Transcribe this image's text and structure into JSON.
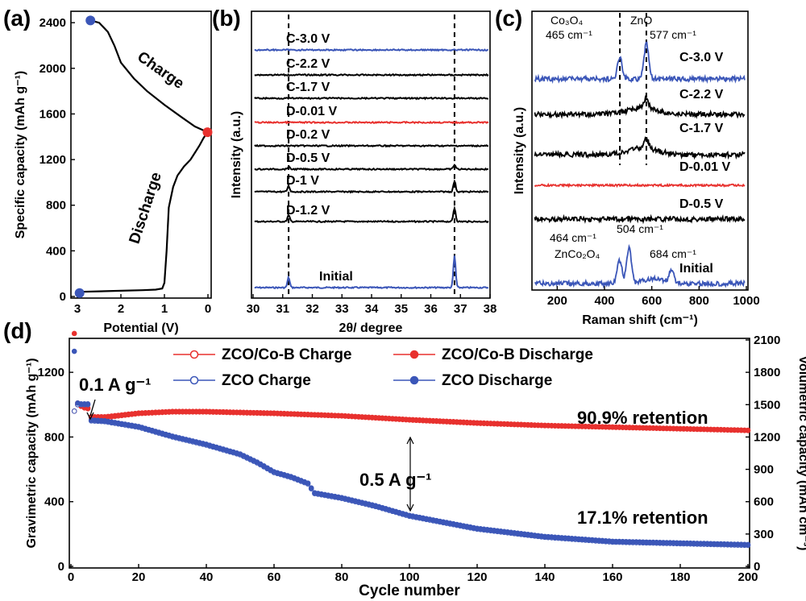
{
  "chart_data": [
    {
      "panel": "(a)",
      "type": "line",
      "xlabel": "Potential (V)",
      "ylabel": "Specific capacity (mAh g⁻¹)",
      "xlim": [
        3,
        0
      ],
      "ylim": [
        0,
        2500
      ],
      "xticks": [
        3,
        2,
        1,
        0
      ],
      "yticks": [
        0,
        400,
        800,
        1200,
        1600,
        2000,
        2400
      ],
      "series": [
        {
          "name": "Discharge",
          "color": "#000000",
          "x": [
            3.0,
            2.5,
            2.0,
            1.5,
            1.2,
            1.05,
            1.0,
            0.95,
            0.9,
            0.8,
            0.7,
            0.55,
            0.4,
            0.3,
            0.2,
            0.1,
            0.01
          ],
          "y": [
            40,
            45,
            50,
            55,
            60,
            70,
            120,
            400,
            780,
            960,
            1060,
            1140,
            1200,
            1260,
            1320,
            1390,
            1440
          ]
        },
        {
          "name": "Charge",
          "color": "#000000",
          "x": [
            0.01,
            0.3,
            0.6,
            1.0,
            1.4,
            1.7,
            2.0,
            2.15,
            2.3,
            2.5,
            2.7
          ],
          "y": [
            1440,
            1490,
            1570,
            1680,
            1800,
            1910,
            2050,
            2200,
            2320,
            2400,
            2420
          ]
        }
      ],
      "markers": [
        {
          "x": 2.95,
          "y": 30,
          "color": "#3b56b8"
        },
        {
          "x": 0.01,
          "y": 1440,
          "color": "#e8312e"
        },
        {
          "x": 2.7,
          "y": 2420,
          "color": "#3b56b8"
        }
      ],
      "annotations": [
        "Charge",
        "Discharge"
      ]
    },
    {
      "panel": "(b)",
      "type": "line",
      "xlabel": "2θ/ degree",
      "ylabel": "Intensity (a.u.)",
      "xlim": [
        30,
        38
      ],
      "xticks": [
        30,
        31,
        32,
        33,
        34,
        35,
        36,
        37,
        38
      ],
      "dashed_lines_x": [
        31.2,
        36.8
      ],
      "series": [
        {
          "name": "Initial",
          "color": "#3b56b8",
          "peaks": [
            {
              "x": 31.2,
              "h": 0.9
            },
            {
              "x": 36.8,
              "h": 2.8
            }
          ]
        },
        {
          "name": "D-1.2 V",
          "color": "#000000",
          "peaks": [
            {
              "x": 31.2,
              "h": 0.55
            },
            {
              "x": 36.8,
              "h": 1.2
            }
          ]
        },
        {
          "name": "D-1 V",
          "color": "#000000",
          "peaks": [
            {
              "x": 31.2,
              "h": 0.5
            },
            {
              "x": 36.8,
              "h": 0.95
            }
          ]
        },
        {
          "name": "D-0.5 V",
          "color": "#000000",
          "peaks": [
            {
              "x": 31.2,
              "h": 0.2
            },
            {
              "x": 36.8,
              "h": 0.4
            }
          ]
        },
        {
          "name": "D-0.2 V",
          "color": "#000000",
          "peaks": []
        },
        {
          "name": "D-0.01 V",
          "color": "#e8312e",
          "peaks": []
        },
        {
          "name": "C-1.7 V",
          "color": "#000000",
          "peaks": []
        },
        {
          "name": "C-2.2 V",
          "color": "#000000",
          "peaks": []
        },
        {
          "name": "C-3.0 V",
          "color": "#3b56b8",
          "peaks": []
        }
      ]
    },
    {
      "panel": "(c)",
      "type": "line",
      "xlabel": "Raman shift (cm⁻¹)",
      "ylabel": "Intensity (a.u.)",
      "xlim": [
        100,
        1000
      ],
      "xticks": [
        200,
        400,
        600,
        800,
        1000
      ],
      "dashed_lines_x": [
        465,
        577
      ],
      "series": [
        {
          "name": "Initial",
          "color": "#3b56b8",
          "peaks": [
            {
              "x": 464,
              "h": 1.3
            },
            {
              "x": 504,
              "h": 2.0
            },
            {
              "x": 684,
              "h": 0.75
            }
          ]
        },
        {
          "name": "D-0.5 V",
          "color": "#000000",
          "peaks": []
        },
        {
          "name": "D-0.01 V",
          "color": "#e8312e",
          "peaks": []
        },
        {
          "name": "C-1.7 V",
          "color": "#000000",
          "peaks": [
            {
              "x": 577,
              "h": 0.55
            }
          ]
        },
        {
          "name": "C-2.2 V",
          "color": "#000000",
          "peaks": [
            {
              "x": 577,
              "h": 0.5
            }
          ]
        },
        {
          "name": "C-3.0 V",
          "color": "#3b56b8",
          "peaks": [
            {
              "x": 465,
              "h": 1.2
            },
            {
              "x": 577,
              "h": 2.0
            }
          ]
        }
      ],
      "annotations": {
        "co3o4": "Co₃O₄",
        "co3o4_shift": "465 cm⁻¹",
        "zno": "ZnO",
        "zno_shift": "577 cm⁻¹",
        "znco2o4": "ZnCo₂O₄",
        "peak_464": "464 cm⁻¹",
        "peak_504": "504 cm⁻¹",
        "peak_684": "684 cm⁻¹"
      }
    },
    {
      "panel": "(d)",
      "type": "scatter",
      "xlabel": "Cycle number",
      "ylabel": "Gravimetric capacity (mAh g⁻¹)",
      "ylabel_right": "Volumetric capacity (mAh cm⁻³)",
      "xlim": [
        0,
        200
      ],
      "ylim": [
        0,
        1400
      ],
      "ylim_right": [
        0,
        2100
      ],
      "xticks": [
        0,
        20,
        40,
        60,
        80,
        100,
        120,
        140,
        160,
        180,
        200
      ],
      "yticks": [
        0,
        400,
        800,
        1200
      ],
      "yticks_right": [
        0,
        300,
        600,
        900,
        1200,
        1500,
        1800,
        2100
      ],
      "series": [
        {
          "name": "ZCO/Co-B Charge",
          "color": "#e8312e",
          "marker": "open-circle",
          "x": [
            1,
            2,
            3,
            4,
            5,
            6,
            10,
            20,
            30,
            40,
            60,
            80,
            100,
            120,
            140,
            160,
            180,
            200
          ],
          "y": [
            960,
            1000,
            990,
            980,
            975,
            920,
            920,
            945,
            955,
            955,
            945,
            930,
            905,
            885,
            870,
            860,
            850,
            840
          ]
        },
        {
          "name": "ZCO/Co-B Discharge",
          "color": "#e8312e",
          "marker": "filled-circle",
          "x": [
            1,
            2,
            3,
            4,
            5,
            6,
            10,
            20,
            30,
            40,
            60,
            80,
            100,
            120,
            140,
            160,
            180,
            200
          ],
          "y": [
            1440,
            1010,
            990,
            985,
            980,
            925,
            925,
            948,
            958,
            958,
            948,
            932,
            908,
            888,
            872,
            862,
            852,
            842
          ]
        },
        {
          "name": "ZCO Charge",
          "color": "#3b56b8",
          "marker": "open-circle",
          "x": [
            1,
            2,
            3,
            4,
            5,
            6,
            10,
            20,
            30,
            40,
            50,
            55,
            60,
            65,
            70,
            72,
            80,
            90,
            100,
            120,
            140,
            160,
            180,
            200
          ],
          "y": [
            960,
            1000,
            1000,
            1000,
            1000,
            900,
            895,
            860,
            800,
            750,
            690,
            640,
            580,
            550,
            510,
            450,
            420,
            370,
            310,
            230,
            180,
            150,
            140,
            130
          ]
        },
        {
          "name": "ZCO Discharge",
          "color": "#3b56b8",
          "marker": "filled-circle",
          "x": [
            1,
            2,
            3,
            4,
            5,
            6,
            10,
            20,
            30,
            40,
            50,
            55,
            60,
            65,
            70,
            72,
            80,
            90,
            100,
            120,
            140,
            160,
            180,
            200
          ],
          "y": [
            1330,
            1010,
            1005,
            1005,
            1005,
            905,
            900,
            865,
            805,
            755,
            695,
            645,
            585,
            555,
            515,
            455,
            425,
            375,
            315,
            235,
            185,
            155,
            145,
            135
          ]
        }
      ],
      "annotations": {
        "rate1": "0.1 A g⁻¹",
        "rate2": "0.5 A g⁻¹",
        "retention1": "90.9% retention",
        "retention2": "17.1% retention"
      }
    }
  ]
}
